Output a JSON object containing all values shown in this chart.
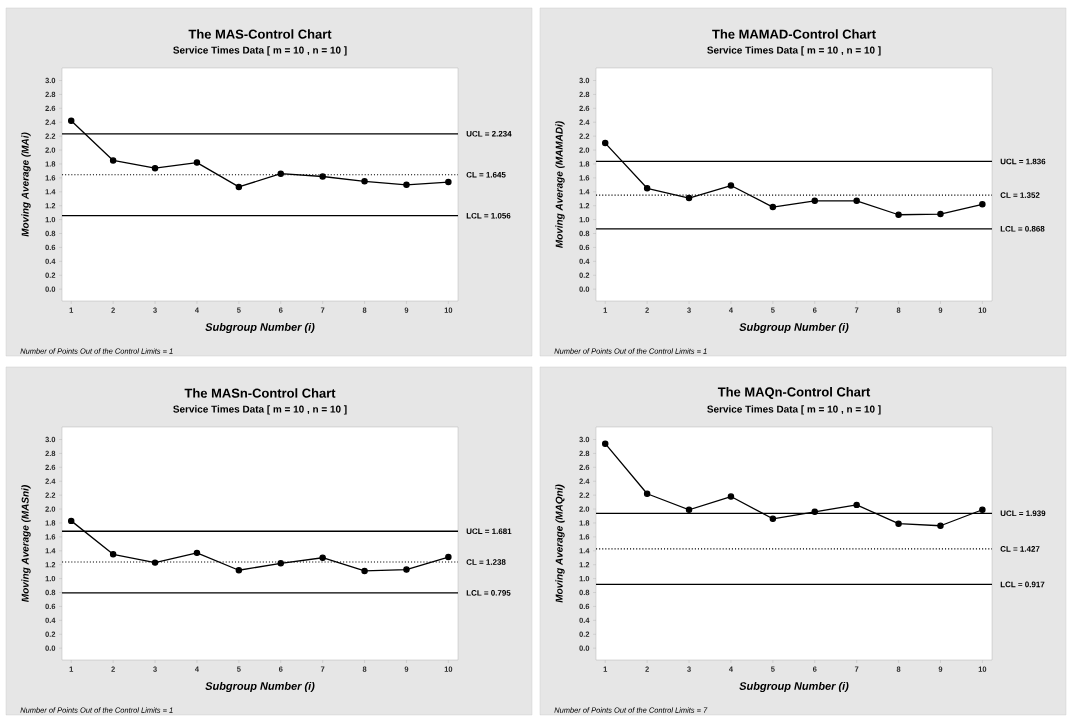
{
  "chart_data": [
    {
      "type": "line",
      "title": "The MAS-Control Chart",
      "subtitle": "Service Times Data [ m = 10 , n = 10 ]",
      "xlabel": "Subgroup Number (i)",
      "ylabel": "Moving Average (MAi)",
      "x": [
        1,
        2,
        3,
        4,
        5,
        6,
        7,
        8,
        9,
        10
      ],
      "series": [
        {
          "color": "#000000",
          "values": [
            2.42,
            1.85,
            1.74,
            1.82,
            1.47,
            1.66,
            1.62,
            1.55,
            1.5,
            1.54
          ]
        }
      ],
      "xlim": [
        0.78,
        10.23
      ],
      "ylim": [
        -0.17,
        3.18
      ],
      "xticks": [
        1,
        2,
        3,
        4,
        5,
        6,
        7,
        8,
        9,
        10
      ],
      "yticks": [
        {
          "value": 0,
          "label": "0.0"
        },
        {
          "value": 0.2,
          "label": "0.2"
        },
        {
          "value": 0.4,
          "label": "0.4"
        },
        {
          "value": 0.6,
          "label": "0.6"
        },
        {
          "value": 0.8,
          "label": "0.8"
        },
        {
          "value": 1,
          "label": "1.0"
        },
        {
          "value": 1.2,
          "label": "1.2"
        },
        {
          "value": 1.4,
          "label": "1.4"
        },
        {
          "value": 1.6,
          "label": "1.6"
        },
        {
          "value": 1.8,
          "label": "1.8"
        },
        {
          "value": 2,
          "label": "2.0"
        },
        {
          "value": 2.2,
          "label": "2.2"
        },
        {
          "value": 2.4,
          "label": "2.4"
        },
        {
          "value": 2.6,
          "label": "2.6"
        },
        {
          "value": 2.8,
          "label": "2.8"
        },
        {
          "value": 3,
          "label": "3.0"
        }
      ],
      "ref_lines": [
        {
          "axis": "y",
          "value": 2.234,
          "label": "UCL = 2.234",
          "color": "#000000",
          "line_style": "solid"
        },
        {
          "axis": "y",
          "value": 1.645,
          "label": "CL = 1.645",
          "color": "#000000",
          "line_style": "dotted"
        },
        {
          "axis": "y",
          "value": 1.056,
          "label": "LCL = 1.056",
          "color": "#000000",
          "line_style": "solid"
        }
      ],
      "annotations": [
        "Number of Points Out of the Control Limits = 1"
      ],
      "marker": "circle",
      "line_style": "solid",
      "grid": false
    },
    {
      "type": "line",
      "title": "The MAMAD-Control Chart",
      "subtitle": "Service Times Data [ m = 10 , n = 10 ]",
      "xlabel": "Subgroup Number (i)",
      "ylabel": "Moving Average (MAMADi)",
      "x": [
        1,
        2,
        3,
        4,
        5,
        6,
        7,
        8,
        9,
        10
      ],
      "series": [
        {
          "color": "#000000",
          "values": [
            2.1,
            1.45,
            1.31,
            1.49,
            1.18,
            1.27,
            1.27,
            1.07,
            1.08,
            1.22
          ]
        }
      ],
      "xlim": [
        0.78,
        10.23
      ],
      "ylim": [
        -0.17,
        3.18
      ],
      "xticks": [
        1,
        2,
        3,
        4,
        5,
        6,
        7,
        8,
        9,
        10
      ],
      "yticks": [
        {
          "value": 0,
          "label": "0.0"
        },
        {
          "value": 0.2,
          "label": "0.2"
        },
        {
          "value": 0.4,
          "label": "0.4"
        },
        {
          "value": 0.6,
          "label": "0.6"
        },
        {
          "value": 0.8,
          "label": "0.8"
        },
        {
          "value": 1,
          "label": "1.0"
        },
        {
          "value": 1.2,
          "label": "1.2"
        },
        {
          "value": 1.4,
          "label": "1.4"
        },
        {
          "value": 1.6,
          "label": "1.6"
        },
        {
          "value": 1.8,
          "label": "1.8"
        },
        {
          "value": 2,
          "label": "2.0"
        },
        {
          "value": 2.2,
          "label": "2.2"
        },
        {
          "value": 2.4,
          "label": "2.4"
        },
        {
          "value": 2.6,
          "label": "2.6"
        },
        {
          "value": 2.8,
          "label": "2.8"
        },
        {
          "value": 3,
          "label": "3.0"
        }
      ],
      "ref_lines": [
        {
          "axis": "y",
          "value": 1.836,
          "label": "UCL = 1.836",
          "color": "#000000",
          "line_style": "solid"
        },
        {
          "axis": "y",
          "value": 1.352,
          "label": "CL = 1.352",
          "color": "#000000",
          "line_style": "dotted"
        },
        {
          "axis": "y",
          "value": 0.868,
          "label": "LCL = 0.868",
          "color": "#000000",
          "line_style": "solid"
        }
      ],
      "annotations": [
        "Number of Points Out of the Control Limits = 1"
      ],
      "marker": "circle",
      "line_style": "solid",
      "grid": false
    },
    {
      "type": "line",
      "title": "The MASn-Control Chart",
      "subtitle": "Service Times Data [ m = 10 , n = 10 ]",
      "xlabel": "Subgroup Number (i)",
      "ylabel": "Moving Average (MASni)",
      "x": [
        1,
        2,
        3,
        4,
        5,
        6,
        7,
        8,
        9,
        10
      ],
      "series": [
        {
          "color": "#000000",
          "values": [
            1.83,
            1.35,
            1.23,
            1.37,
            1.12,
            1.22,
            1.3,
            1.11,
            1.13,
            1.31
          ]
        }
      ],
      "xlim": [
        0.78,
        10.23
      ],
      "ylim": [
        -0.17,
        3.18
      ],
      "xticks": [
        1,
        2,
        3,
        4,
        5,
        6,
        7,
        8,
        9,
        10
      ],
      "yticks": [
        {
          "value": 0,
          "label": "0.0"
        },
        {
          "value": 0.2,
          "label": "0.2"
        },
        {
          "value": 0.4,
          "label": "0.4"
        },
        {
          "value": 0.6,
          "label": "0.6"
        },
        {
          "value": 0.8,
          "label": "0.8"
        },
        {
          "value": 1,
          "label": "1.0"
        },
        {
          "value": 1.2,
          "label": "1.2"
        },
        {
          "value": 1.4,
          "label": "1.4"
        },
        {
          "value": 1.6,
          "label": "1.6"
        },
        {
          "value": 1.8,
          "label": "1.8"
        },
        {
          "value": 2,
          "label": "2.0"
        },
        {
          "value": 2.2,
          "label": "2.2"
        },
        {
          "value": 2.4,
          "label": "2.4"
        },
        {
          "value": 2.6,
          "label": "2.6"
        },
        {
          "value": 2.8,
          "label": "2.8"
        },
        {
          "value": 3,
          "label": "3.0"
        }
      ],
      "ref_lines": [
        {
          "axis": "y",
          "value": 1.681,
          "label": "UCL = 1.681",
          "color": "#000000",
          "line_style": "solid"
        },
        {
          "axis": "y",
          "value": 1.238,
          "label": "CL = 1.238",
          "color": "#000000",
          "line_style": "dotted"
        },
        {
          "axis": "y",
          "value": 0.795,
          "label": "LCL = 0.795",
          "color": "#000000",
          "line_style": "solid"
        }
      ],
      "annotations": [
        "Number of Points Out of the Control Limits = 1"
      ],
      "marker": "circle",
      "line_style": "solid",
      "grid": false
    },
    {
      "type": "line",
      "title": "The MAQn-Control Chart",
      "subtitle": "Service Times Data [ m = 10 , n = 10 ]",
      "xlabel": "Subgroup Number (i)",
      "ylabel": "Moving Average (MAQni)",
      "x": [
        1,
        2,
        3,
        4,
        5,
        6,
        7,
        8,
        9,
        10
      ],
      "series": [
        {
          "color": "#000000",
          "values": [
            2.94,
            2.22,
            1.99,
            2.18,
            1.86,
            1.96,
            2.06,
            1.79,
            1.76,
            1.99
          ]
        }
      ],
      "xlim": [
        0.78,
        10.23
      ],
      "ylim": [
        -0.17,
        3.18
      ],
      "xticks": [
        1,
        2,
        3,
        4,
        5,
        6,
        7,
        8,
        9,
        10
      ],
      "yticks": [
        {
          "value": 0,
          "label": "0.0"
        },
        {
          "value": 0.2,
          "label": "0.2"
        },
        {
          "value": 0.4,
          "label": "0.4"
        },
        {
          "value": 0.6,
          "label": "0.6"
        },
        {
          "value": 0.8,
          "label": "0.8"
        },
        {
          "value": 1,
          "label": "1.0"
        },
        {
          "value": 1.2,
          "label": "1.2"
        },
        {
          "value": 1.4,
          "label": "1.4"
        },
        {
          "value": 1.6,
          "label": "1.6"
        },
        {
          "value": 1.8,
          "label": "1.8"
        },
        {
          "value": 2,
          "label": "2.0"
        },
        {
          "value": 2.2,
          "label": "2.2"
        },
        {
          "value": 2.4,
          "label": "2.4"
        },
        {
          "value": 2.6,
          "label": "2.6"
        },
        {
          "value": 2.8,
          "label": "2.8"
        },
        {
          "value": 3,
          "label": "3.0"
        }
      ],
      "ref_lines": [
        {
          "axis": "y",
          "value": 1.939,
          "label": "UCL = 1.939",
          "color": "#000000",
          "line_style": "solid"
        },
        {
          "axis": "y",
          "value": 1.427,
          "label": "CL = 1.427",
          "color": "#000000",
          "line_style": "dotted"
        },
        {
          "axis": "y",
          "value": 0.917,
          "label": "LCL = 0.917",
          "color": "#000000",
          "line_style": "solid"
        }
      ],
      "annotations": [
        "Number of Points Out of the Control Limits = 7"
      ],
      "marker": "circle",
      "line_style": "solid",
      "grid": false
    }
  ]
}
